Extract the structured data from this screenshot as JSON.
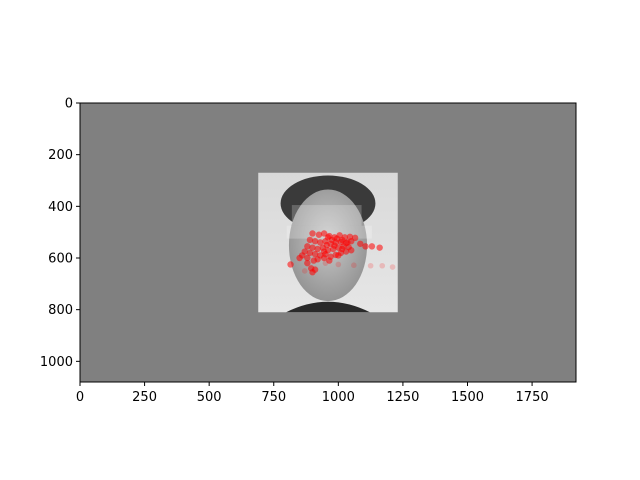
{
  "chart_data": {
    "type": "scatter",
    "title": "",
    "xlabel": "",
    "ylabel": "",
    "xlim": [
      0,
      1920
    ],
    "ylim": [
      1080,
      0
    ],
    "y_inverted": true,
    "grid": false,
    "xticks": [
      0,
      250,
      500,
      750,
      1000,
      1250,
      1500,
      1750
    ],
    "yticks": [
      0,
      200,
      400,
      600,
      800,
      1000
    ],
    "background_color": "#808080",
    "face_image": {
      "x_range": [
        690,
        1230
      ],
      "y_range": [
        270,
        810
      ],
      "description": "grayscale face photo"
    },
    "highlight_boxes": [
      {
        "x_range": [
          820,
          1090
        ],
        "y_range": [
          395,
          475
        ]
      },
      {
        "x_range": [
          800,
          1130
        ],
        "y_range": [
          475,
          525
        ]
      }
    ],
    "points_color": "#ff0000",
    "points": [
      [
        900,
        505
      ],
      [
        925,
        510
      ],
      [
        945,
        505
      ],
      [
        965,
        515
      ],
      [
        985,
        520
      ],
      [
        1005,
        512
      ],
      [
        1025,
        520
      ],
      [
        1045,
        518
      ],
      [
        1065,
        522
      ],
      [
        890,
        530
      ],
      [
        910,
        535
      ],
      [
        930,
        540
      ],
      [
        950,
        535
      ],
      [
        970,
        545
      ],
      [
        990,
        540
      ],
      [
        1010,
        538
      ],
      [
        1030,
        542
      ],
      [
        1050,
        535
      ],
      [
        880,
        555
      ],
      [
        900,
        560
      ],
      [
        920,
        565
      ],
      [
        940,
        560
      ],
      [
        960,
        570
      ],
      [
        980,
        565
      ],
      [
        1000,
        560
      ],
      [
        1020,
        555
      ],
      [
        1040,
        558
      ],
      [
        870,
        575
      ],
      [
        890,
        580
      ],
      [
        910,
        585
      ],
      [
        930,
        590
      ],
      [
        950,
        585
      ],
      [
        970,
        595
      ],
      [
        990,
        588
      ],
      [
        1010,
        580
      ],
      [
        1030,
        575
      ],
      [
        960,
        520
      ],
      [
        975,
        530
      ],
      [
        995,
        525
      ],
      [
        1015,
        530
      ],
      [
        1035,
        540
      ],
      [
        955,
        550
      ],
      [
        985,
        552
      ],
      [
        945,
        575
      ],
      [
        1000,
        590
      ],
      [
        860,
        590
      ],
      [
        850,
        600
      ],
      [
        880,
        600
      ],
      [
        905,
        610
      ],
      [
        920,
        605
      ],
      [
        945,
        600
      ],
      [
        965,
        610
      ],
      [
        880,
        620
      ],
      [
        895,
        640
      ],
      [
        910,
        645
      ],
      [
        900,
        655
      ],
      [
        815,
        625
      ],
      [
        1085,
        545
      ],
      [
        1105,
        555
      ],
      [
        1130,
        555
      ],
      [
        1160,
        560
      ],
      [
        1015,
        565
      ],
      [
        1050,
        570
      ]
    ],
    "faint_points": [
      [
        1170,
        630
      ],
      [
        1210,
        635
      ],
      [
        1125,
        630
      ],
      [
        1060,
        628
      ],
      [
        1000,
        625
      ],
      [
        950,
        620
      ],
      [
        870,
        650
      ]
    ]
  }
}
